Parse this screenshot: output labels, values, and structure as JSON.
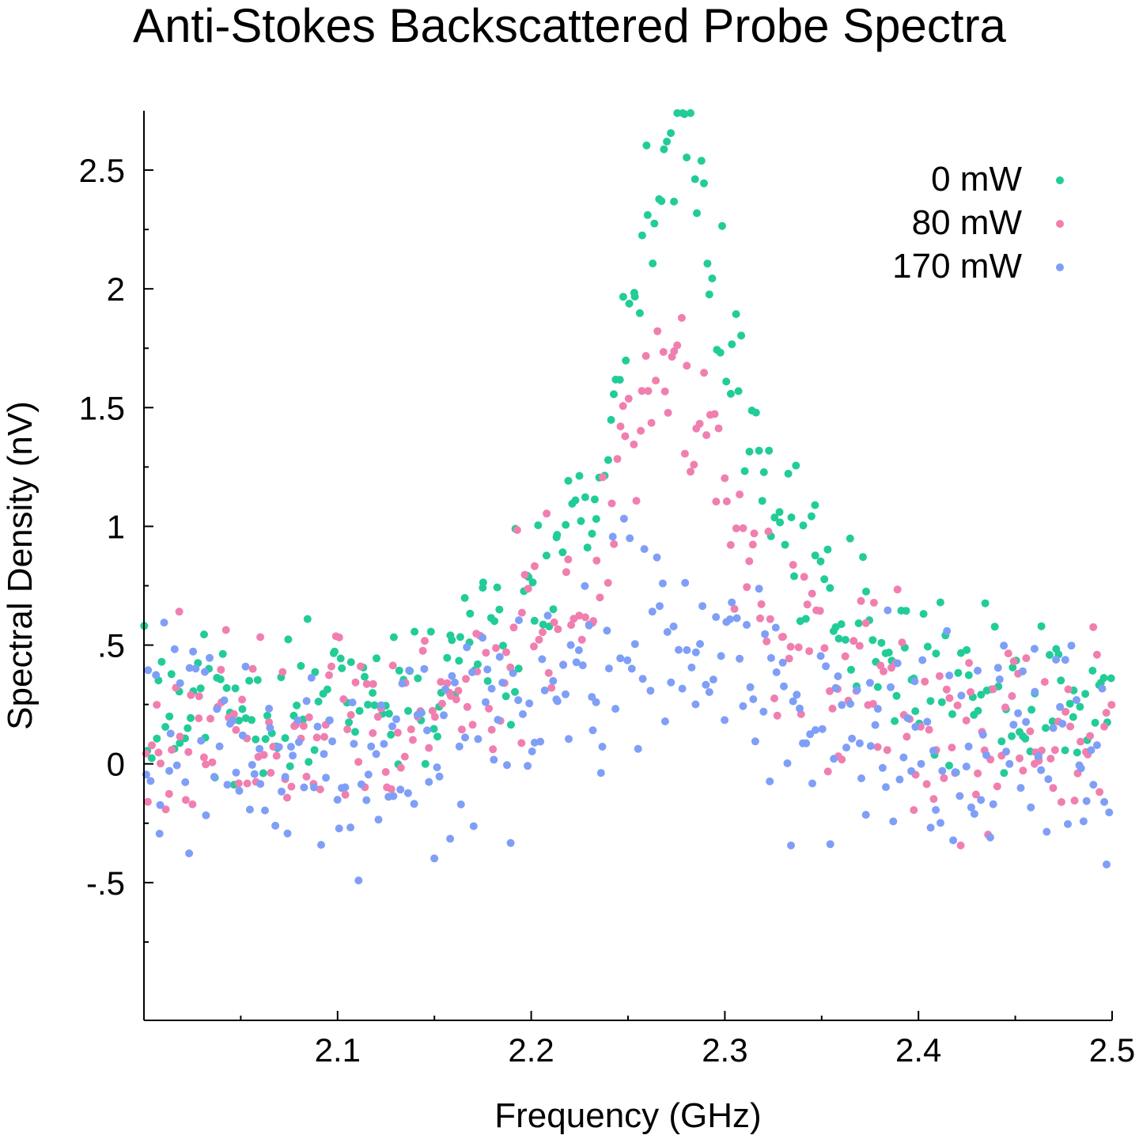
{
  "chart_data": {
    "type": "scatter",
    "title": "Anti-Stokes Backscattered Probe Spectra",
    "xlabel": "Frequency (GHz)",
    "ylabel": "Spectral Density (nV)",
    "xlim": [
      2.0,
      2.5
    ],
    "ylim": [
      -1.08,
      2.75
    ],
    "x_ticks": [
      {
        "value": 2.1,
        "label": "2.1"
      },
      {
        "value": 2.2,
        "label": "2.2"
      },
      {
        "value": 2.3,
        "label": "2.3"
      },
      {
        "value": 2.4,
        "label": "2.4"
      },
      {
        "value": 2.5,
        "label": "2.5"
      }
    ],
    "x_minor_ticks": [
      2.05,
      2.15,
      2.25,
      2.35,
      2.45
    ],
    "y_ticks": [
      {
        "value": -0.5,
        "label": "-.5"
      },
      {
        "value": 0,
        "label": "0"
      },
      {
        "value": 0.5,
        "label": ".5"
      },
      {
        "value": 1,
        "label": "1"
      },
      {
        "value": 1.5,
        "label": "1.5"
      },
      {
        "value": 2,
        "label": "2"
      },
      {
        "value": 2.5,
        "label": "2.5"
      }
    ],
    "y_minor_ticks": [
      -0.75,
      -0.25,
      0.25,
      0.75,
      1.25,
      1.75,
      2.25
    ],
    "grid": false,
    "legend_position": "top-right",
    "series": [
      {
        "name": "0 mW",
        "color": "#22cc99",
        "peak_center": 2.275,
        "peak_height": 2.5,
        "peak_width": 0.04,
        "baseline": 0.15,
        "noise": 0.22,
        "points": 300
      },
      {
        "name": "80 mW",
        "color": "#f07fb0",
        "peak_center": 2.272,
        "peak_height": 1.55,
        "peak_width": 0.045,
        "baseline": 0.05,
        "noise": 0.24,
        "points": 300
      },
      {
        "name": "170 mW",
        "color": "#7f9ff7",
        "peak_center": 2.268,
        "peak_height": 0.55,
        "peak_width": 0.05,
        "baseline": 0.02,
        "noise": 0.28,
        "points": 300
      }
    ]
  }
}
